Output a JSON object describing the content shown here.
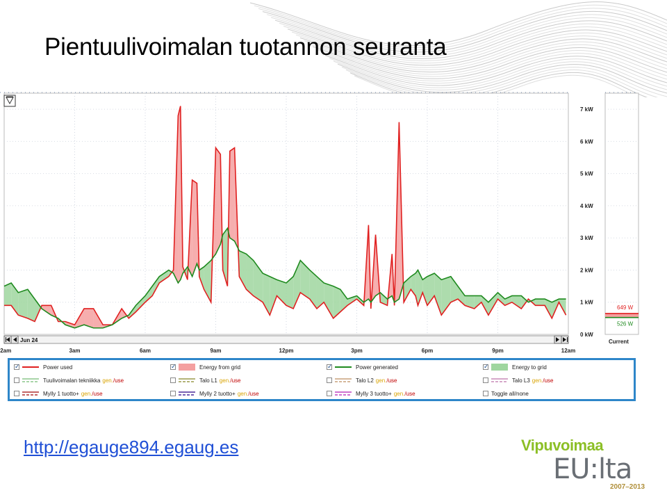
{
  "title": "Pientuulivoimalan tuotannon seuranta",
  "url_text": "http://egauge894.egaug.es",
  "logo": {
    "word": "Vipuvoimaa",
    "eu": "EU:lta",
    "years": "2007–2013"
  },
  "chart_data": {
    "type": "line",
    "title": "",
    "date_label": "Jun 24",
    "current_label": "Current",
    "x_ticks": [
      "12am",
      "3am",
      "6am",
      "9am",
      "12pm",
      "3pm",
      "6pm",
      "9pm",
      "12am"
    ],
    "xlim": [
      0,
      24
    ],
    "y_ticks": [
      "0 kW",
      "1 kW",
      "2 kW",
      "3 kW",
      "4 kW",
      "5 kW",
      "6 kW",
      "7 kW"
    ],
    "ylim": [
      0,
      7.5
    ],
    "current_values": {
      "used": "649 W",
      "generated": "526 W"
    },
    "series": [
      {
        "name": "Power used",
        "color": "#e02020",
        "x": [
          0,
          0.3,
          0.6,
          1,
          1.3,
          1.6,
          2,
          2.3,
          2.6,
          3,
          3.4,
          3.8,
          4.2,
          4.6,
          5,
          5.3,
          5.6,
          6,
          6.3,
          6.6,
          7,
          7.2,
          7.4,
          7.5,
          7.6,
          7.8,
          8,
          8.2,
          8.3,
          8.5,
          8.8,
          9,
          9.2,
          9.3,
          9.5,
          9.6,
          9.8,
          10,
          10.3,
          10.6,
          11,
          11.3,
          11.6,
          12,
          12.3,
          12.6,
          13,
          13.3,
          13.6,
          14,
          14.3,
          14.6,
          15,
          15.3,
          15.5,
          15.6,
          15.8,
          16,
          16.3,
          16.5,
          16.6,
          16.8,
          17,
          17.3,
          17.5,
          17.6,
          17.8,
          18,
          18.3,
          18.6,
          19,
          19.3,
          19.6,
          20,
          20.3,
          20.6,
          21,
          21.3,
          21.6,
          22,
          22.3,
          22.6,
          23,
          23.3,
          23.6,
          23.9
        ],
        "values": [
          0.9,
          0.9,
          0.6,
          0.5,
          0.4,
          0.9,
          0.9,
          0.4,
          0.4,
          0.3,
          0.8,
          0.8,
          0.3,
          0.3,
          0.8,
          0.5,
          0.7,
          1.0,
          1.2,
          1.6,
          1.8,
          2.0,
          6.8,
          7.1,
          2.1,
          1.7,
          4.8,
          4.7,
          1.8,
          1.4,
          1.0,
          5.8,
          5.6,
          2.0,
          1.5,
          5.7,
          5.8,
          1.8,
          1.4,
          1.2,
          1.0,
          0.6,
          1.2,
          0.9,
          0.8,
          1.3,
          1.1,
          0.8,
          1.0,
          0.5,
          0.7,
          0.9,
          1.1,
          0.9,
          3.4,
          0.8,
          3.1,
          1.0,
          0.9,
          2.5,
          0.9,
          6.6,
          1.0,
          1.4,
          1.2,
          0.9,
          1.3,
          0.9,
          1.2,
          0.6,
          1.0,
          1.1,
          0.9,
          0.8,
          1.0,
          0.6,
          1.1,
          0.9,
          1.0,
          0.8,
          1.1,
          0.9,
          0.9,
          0.5,
          1.0,
          0.6
        ]
      },
      {
        "name": "Power generated",
        "color": "#1f8a1f",
        "x": [
          0,
          0.3,
          0.6,
          1,
          1.3,
          1.6,
          2,
          2.3,
          2.6,
          3,
          3.4,
          3.8,
          4.2,
          4.6,
          5,
          5.3,
          5.6,
          6,
          6.3,
          6.6,
          7,
          7.2,
          7.4,
          7.5,
          7.6,
          7.8,
          8,
          8.2,
          8.3,
          8.5,
          8.8,
          9,
          9.2,
          9.3,
          9.5,
          9.6,
          9.8,
          10,
          10.3,
          10.6,
          11,
          11.3,
          11.6,
          12,
          12.3,
          12.6,
          13,
          13.3,
          13.6,
          14,
          14.3,
          14.6,
          15,
          15.3,
          15.5,
          15.6,
          15.8,
          16,
          16.3,
          16.5,
          16.6,
          16.8,
          17,
          17.3,
          17.5,
          17.6,
          17.8,
          18,
          18.3,
          18.6,
          19,
          19.3,
          19.6,
          20,
          20.3,
          20.6,
          21,
          21.3,
          21.6,
          22,
          22.3,
          22.6,
          23,
          23.3,
          23.6,
          23.9
        ],
        "values": [
          1.5,
          1.6,
          1.3,
          1.4,
          1.1,
          0.8,
          0.6,
          0.5,
          0.3,
          0.2,
          0.3,
          0.2,
          0.2,
          0.3,
          0.5,
          0.6,
          0.9,
          1.2,
          1.5,
          1.8,
          2.0,
          1.9,
          1.6,
          1.7,
          1.9,
          2.1,
          1.8,
          2.2,
          2.0,
          2.1,
          2.3,
          2.5,
          2.8,
          3.1,
          3.3,
          3.0,
          2.9,
          2.6,
          2.5,
          2.3,
          1.9,
          1.8,
          1.7,
          1.6,
          1.8,
          2.3,
          2.0,
          1.8,
          1.6,
          1.5,
          1.4,
          1.1,
          1.2,
          1.0,
          1.1,
          1.0,
          1.2,
          1.3,
          1.1,
          1.2,
          1.0,
          1.1,
          1.6,
          1.8,
          1.9,
          2.0,
          1.7,
          1.8,
          1.9,
          1.7,
          1.8,
          1.5,
          1.2,
          1.2,
          1.2,
          1.0,
          1.3,
          1.1,
          1.2,
          1.2,
          1.0,
          1.1,
          1.1,
          1.0,
          1.1,
          1.1
        ]
      }
    ],
    "legend": [
      {
        "label": "Power used",
        "checked": true,
        "style": "line",
        "color": "#e02020"
      },
      {
        "label": "Energy from grid",
        "checked": true,
        "style": "fill",
        "color": "#f4a0a0"
      },
      {
        "label": "Power generated",
        "checked": true,
        "style": "line",
        "color": "#1f8a1f"
      },
      {
        "label": "Energy to grid",
        "checked": true,
        "style": "fill",
        "color": "#9fd69f"
      },
      {
        "label": "Tuulivoimalan tekniikka",
        "suffix_gen": "gen.",
        "suffix_use": "/use",
        "checked": false,
        "style": "double",
        "color": "#8cc78c"
      },
      {
        "label": "Talo L1",
        "suffix_gen": "gen.",
        "suffix_use": "/use",
        "checked": false,
        "style": "double",
        "color": "#9a9a4a"
      },
      {
        "label": "Talo L2",
        "suffix_gen": "gen.",
        "suffix_use": "/use",
        "checked": false,
        "style": "double",
        "color": "#c9a07a"
      },
      {
        "label": "Talo L3",
        "suffix_gen": "gen.",
        "suffix_use": "/use",
        "checked": false,
        "style": "double",
        "color": "#c98ab8"
      },
      {
        "label": "Mylly 1 tuotto+",
        "suffix_gen": "gen.",
        "suffix_use": "/use",
        "checked": false,
        "style": "double",
        "color": "#b03030"
      },
      {
        "label": "Mylly 2 tuotto+",
        "suffix_gen": "gen.",
        "suffix_use": "/use",
        "checked": false,
        "style": "double",
        "color": "#4b2a9a"
      },
      {
        "label": "Mylly 3 tuotto+",
        "suffix_gen": "gen.",
        "suffix_use": "/use",
        "checked": false,
        "style": "double",
        "color": "#c040c0"
      },
      {
        "label": "Toggle all/none",
        "checked": false,
        "style": "none",
        "color": "#000000"
      }
    ]
  }
}
